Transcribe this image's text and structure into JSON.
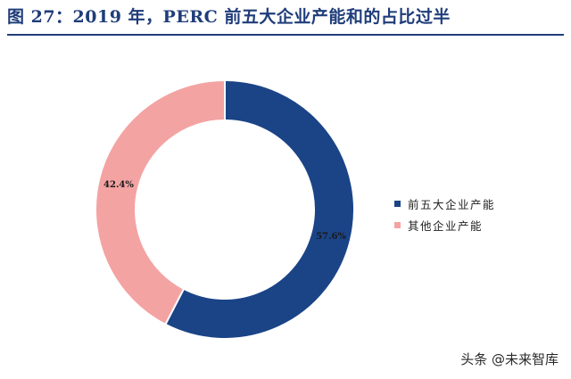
{
  "page": {
    "title": "图 27：2019 年，PERC 前五大企业产能和的占比过半",
    "watermark": "头条 @未来智库"
  },
  "colors": {
    "title": "#1f3d7a",
    "series_top5": "#1b4487",
    "series_other": "#f4a3a3"
  },
  "chart_data": {
    "type": "pie",
    "style": "donut",
    "title": "",
    "categories": [
      "前五大企业产能",
      "其他企业产能"
    ],
    "values": [
      57.6,
      42.4
    ],
    "labels": [
      "57.6%",
      "42.4%"
    ],
    "start_angle_deg": 0,
    "direction": "clockwise",
    "legend_position": "right"
  }
}
